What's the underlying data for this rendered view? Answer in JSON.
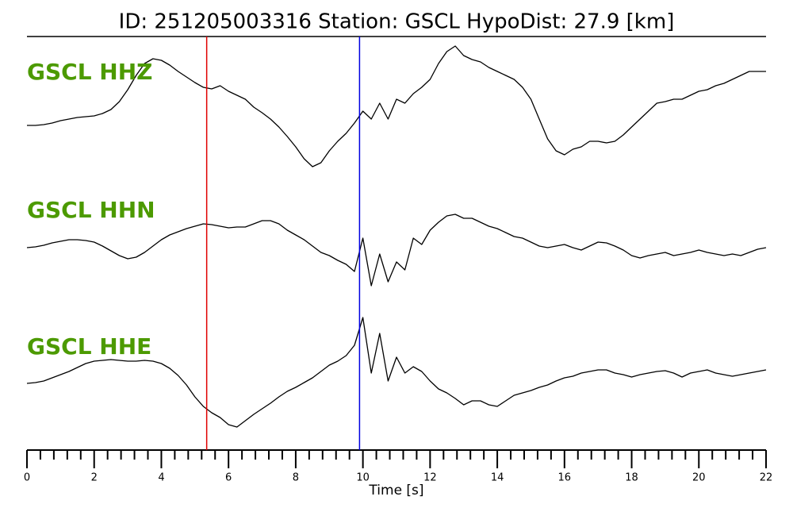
{
  "chart_data": {
    "type": "line",
    "title": "ID: 251205003316   Station: GSCL   HypoDist:    27.9 [km]",
    "xlabel": "Time [s]",
    "xlim": [
      0,
      22
    ],
    "xticks": [
      0,
      2,
      4,
      6,
      8,
      10,
      12,
      14,
      16,
      18,
      20,
      22
    ],
    "xminorticks": [
      0.4,
      0.8,
      1.2,
      1.6,
      2.4,
      2.8,
      3.2,
      3.6,
      4.4,
      4.8,
      5.2,
      5.6,
      6.4,
      6.8,
      7.2,
      7.6,
      8.4,
      8.8,
      9.2,
      9.6,
      10.4,
      10.8,
      11.2,
      11.6,
      12.4,
      12.8,
      13.2,
      13.6,
      14.4,
      14.8,
      15.2,
      15.6,
      16.4,
      16.8,
      17.2,
      17.6,
      18.4,
      18.8,
      19.2,
      19.6,
      20.4,
      20.8,
      21.2,
      21.6
    ],
    "ylim": [
      -85,
      85
    ],
    "label_color": "#4c9a00",
    "vlines": [
      {
        "x": 5.35,
        "color": "#e00000"
      },
      {
        "x": 9.9,
        "color": "#0000e0"
      }
    ],
    "x": [
      0,
      0.25,
      0.5,
      0.75,
      1,
      1.25,
      1.5,
      1.75,
      2,
      2.25,
      2.5,
      2.75,
      3,
      3.25,
      3.5,
      3.75,
      4,
      4.25,
      4.5,
      4.75,
      5,
      5.25,
      5.5,
      5.75,
      6,
      6.25,
      6.5,
      6.75,
      7,
      7.25,
      7.5,
      7.75,
      8,
      8.25,
      8.5,
      8.75,
      9,
      9.25,
      9.5,
      9.75,
      10,
      10.25,
      10.5,
      10.75,
      11,
      11.25,
      11.5,
      11.75,
      12,
      12.25,
      12.5,
      12.75,
      13,
      13.25,
      13.5,
      13.75,
      14,
      14.25,
      14.5,
      14.75,
      15,
      15.25,
      15.5,
      15.75,
      16,
      16.25,
      16.5,
      16.75,
      17,
      17.25,
      17.5,
      17.75,
      18,
      18.25,
      18.5,
      18.75,
      19,
      19.25,
      19.5,
      19.75,
      20,
      20.25,
      20.5,
      20.75,
      21,
      21.25,
      21.5,
      21.75,
      22
    ],
    "series": [
      {
        "name": "GSCL HHZ",
        "color": "#000000",
        "values": [
          -21,
          -21,
          -20,
          -18,
          -15,
          -13,
          -11,
          -10,
          -9,
          -6,
          -1,
          9,
          24,
          42,
          57,
          63,
          61,
          55,
          47,
          40,
          33,
          27,
          25,
          29,
          22,
          17,
          12,
          2,
          -5,
          -13,
          -23,
          -35,
          -48,
          -63,
          -73,
          -68,
          -53,
          -41,
          -31,
          -18,
          -3,
          -13,
          7,
          -13,
          12,
          7,
          19,
          27,
          37,
          57,
          72,
          79,
          67,
          62,
          59,
          52,
          47,
          42,
          37,
          27,
          12,
          -13,
          -38,
          -53,
          -58,
          -51,
          -48,
          -41,
          -41,
          -43,
          -41,
          -33,
          -23,
          -13,
          -3,
          7,
          9,
          12,
          12,
          17,
          22,
          24,
          29,
          32,
          37,
          42,
          47,
          47,
          47
        ]
      },
      {
        "name": "GSCL HHN",
        "color": "#000000",
        "values": [
          6,
          7,
          9,
          12,
          14,
          16,
          16,
          15,
          13,
          8,
          2,
          -4,
          -8,
          -6,
          0,
          8,
          16,
          22,
          26,
          30,
          33,
          36,
          35,
          33,
          31,
          32,
          32,
          36,
          40,
          40,
          36,
          28,
          22,
          16,
          8,
          0,
          -4,
          -10,
          -15,
          -24,
          18,
          -42,
          -2,
          -37,
          -12,
          -22,
          18,
          10,
          28,
          38,
          46,
          48,
          43,
          43,
          38,
          33,
          30,
          25,
          20,
          18,
          13,
          8,
          6,
          8,
          10,
          6,
          3,
          8,
          13,
          12,
          8,
          3,
          -4,
          -7,
          -4,
          -2,
          0,
          -4,
          -2,
          0,
          3,
          0,
          -2,
          -4,
          -2,
          -4,
          0,
          4,
          6
        ]
      },
      {
        "name": "GSCL HHE",
        "color": "#000000",
        "values": [
          -15,
          -14,
          -12,
          -8,
          -4,
          0,
          5,
          10,
          13,
          14,
          15,
          14,
          13,
          13,
          14,
          13,
          10,
          4,
          -5,
          -17,
          -32,
          -44,
          -52,
          -58,
          -67,
          -70,
          -62,
          -54,
          -47,
          -40,
          -32,
          -25,
          -20,
          -14,
          -8,
          0,
          8,
          13,
          20,
          33,
          68,
          -2,
          48,
          -12,
          18,
          -2,
          6,
          0,
          -12,
          -22,
          -27,
          -34,
          -42,
          -37,
          -37,
          -42,
          -44,
          -37,
          -30,
          -27,
          -24,
          -20,
          -17,
          -12,
          -8,
          -6,
          -2,
          0,
          2,
          2,
          -2,
          -4,
          -7,
          -4,
          -2,
          0,
          1,
          -2,
          -7,
          -2,
          0,
          2,
          -2,
          -4,
          -6,
          -4,
          -2,
          0,
          2
        ]
      }
    ]
  }
}
